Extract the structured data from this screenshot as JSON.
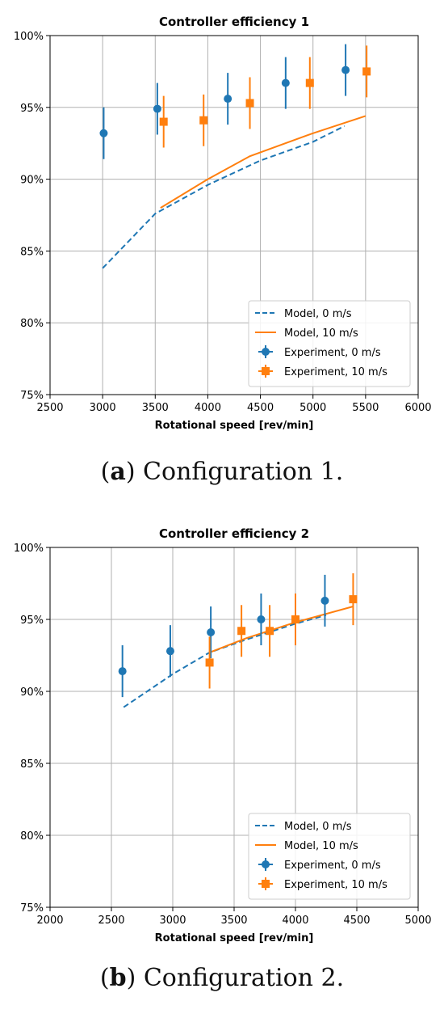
{
  "chart_data": [
    {
      "type": "scatter",
      "title": "Controller efficiency 1",
      "xlabel": "Rotational speed [rev/min]",
      "ylabel": "",
      "xlim": [
        2500,
        6000
      ],
      "ylim": [
        75,
        100
      ],
      "x_ticks": [
        2500,
        3000,
        3500,
        4000,
        4500,
        5000,
        5500,
        6000
      ],
      "y_ticks": [
        75,
        80,
        85,
        90,
        95,
        100
      ],
      "y_tick_labels": [
        "75%",
        "80%",
        "85%",
        "90%",
        "95%",
        "100%"
      ],
      "grid": true,
      "legend_position": "bottom-right",
      "series": [
        {
          "name": "Model, 0 m/s",
          "kind": "line",
          "style": "dashed",
          "color": "#1f77b4",
          "x": [
            3000,
            3500,
            4000,
            4500,
            5000,
            5300
          ],
          "y": [
            83.8,
            87.6,
            89.6,
            91.3,
            92.6,
            93.7
          ]
        },
        {
          "name": "Model, 10 m/s",
          "kind": "line",
          "style": "solid",
          "color": "#ff7f0e",
          "x": [
            3550,
            4000,
            4400,
            5000,
            5500
          ],
          "y": [
            88.0,
            90.0,
            91.6,
            93.2,
            94.4
          ]
        },
        {
          "name": "Experiment, 0 m/s",
          "kind": "errorbar",
          "marker": "circle",
          "color": "#1f77b4",
          "x": [
            3010,
            3520,
            4190,
            4740,
            5310
          ],
          "y": [
            93.2,
            94.9,
            95.6,
            96.7,
            97.6
          ],
          "err": [
            1.8,
            1.8,
            1.8,
            1.8,
            1.8
          ]
        },
        {
          "name": "Experiment, 10 m/s",
          "kind": "errorbar",
          "marker": "square",
          "color": "#ff7f0e",
          "x": [
            3580,
            3960,
            4400,
            4970,
            5510
          ],
          "y": [
            94.0,
            94.1,
            95.3,
            96.7,
            97.5
          ],
          "err": [
            1.8,
            1.8,
            1.8,
            1.8,
            1.8
          ]
        }
      ],
      "caption_label": "a",
      "caption_text": ") Configuration 1.",
      "caption_open": "("
    },
    {
      "type": "scatter",
      "title": "Controller efficiency 2",
      "xlabel": "Rotational speed [rev/min]",
      "ylabel": "",
      "xlim": [
        2000,
        5000
      ],
      "ylim": [
        75,
        100
      ],
      "x_ticks": [
        2000,
        2500,
        3000,
        3500,
        4000,
        4500,
        5000
      ],
      "y_ticks": [
        75,
        80,
        85,
        90,
        95,
        100
      ],
      "y_tick_labels": [
        "75%",
        "80%",
        "85%",
        "90%",
        "95%",
        "100%"
      ],
      "grid": true,
      "legend_position": "bottom-right",
      "series": [
        {
          "name": "Model, 0 m/s",
          "kind": "line",
          "style": "dashed",
          "color": "#1f77b4",
          "x": [
            2600,
            3000,
            3300,
            3600,
            4000,
            4250
          ],
          "y": [
            88.9,
            91.2,
            92.7,
            93.6,
            94.7,
            95.3
          ]
        },
        {
          "name": "Model, 10 m/s",
          "kind": "line",
          "style": "solid",
          "color": "#ff7f0e",
          "x": [
            3300,
            3600,
            4000,
            4470
          ],
          "y": [
            92.7,
            93.7,
            94.8,
            95.9
          ]
        },
        {
          "name": "Experiment, 0 m/s",
          "kind": "errorbar",
          "marker": "circle",
          "color": "#1f77b4",
          "x": [
            2590,
            2980,
            3310,
            3720,
            4240
          ],
          "y": [
            91.4,
            92.8,
            94.1,
            95.0,
            96.3
          ],
          "err": [
            1.8,
            1.8,
            1.8,
            1.8,
            1.8
          ]
        },
        {
          "name": "Experiment, 10 m/s",
          "kind": "errorbar",
          "marker": "square",
          "color": "#ff7f0e",
          "x": [
            3300,
            3560,
            3790,
            4000,
            4470
          ],
          "y": [
            92.0,
            94.2,
            94.2,
            95.0,
            96.4
          ],
          "err": [
            1.8,
            1.8,
            1.8,
            1.8,
            1.8
          ]
        }
      ],
      "caption_label": "b",
      "caption_text": ") Configuration 2.",
      "caption_open": "("
    }
  ]
}
